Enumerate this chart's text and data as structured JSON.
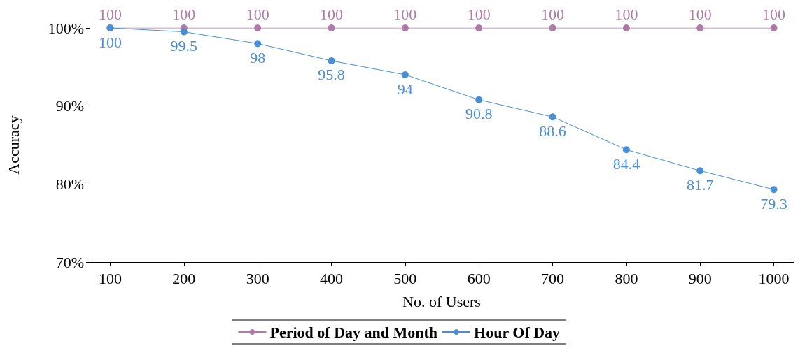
{
  "chart_data": {
    "type": "line",
    "xlabel": "No. of Users",
    "ylabel": "Accuracy",
    "x": [
      100,
      200,
      300,
      400,
      500,
      600,
      700,
      800,
      900,
      1000
    ],
    "series": [
      {
        "name": "Period of Day and Month",
        "color": "#b07aa8",
        "values": [
          100,
          100,
          100,
          100,
          100,
          100,
          100,
          100,
          100,
          100
        ]
      },
      {
        "name": "Hour Of Day",
        "color": "#4a8fd6",
        "values": [
          100,
          99.5,
          98,
          95.8,
          94,
          90.8,
          88.6,
          84.4,
          81.7,
          79.3
        ]
      }
    ],
    "xlim": [
      72,
      1027
    ],
    "xticks": [
      100,
      200,
      300,
      400,
      500,
      600,
      700,
      800,
      900,
      1000
    ],
    "ylim": [
      70,
      100
    ],
    "yticks": [
      {
        "value": 70,
        "label": "70%"
      },
      {
        "value": 80,
        "label": "80%"
      },
      {
        "value": 90,
        "label": "90%"
      },
      {
        "value": 100,
        "label": "100%"
      }
    ],
    "data_labels": true,
    "legend": "bottom",
    "marker": "circle",
    "line_style": "solid",
    "grid": false
  }
}
